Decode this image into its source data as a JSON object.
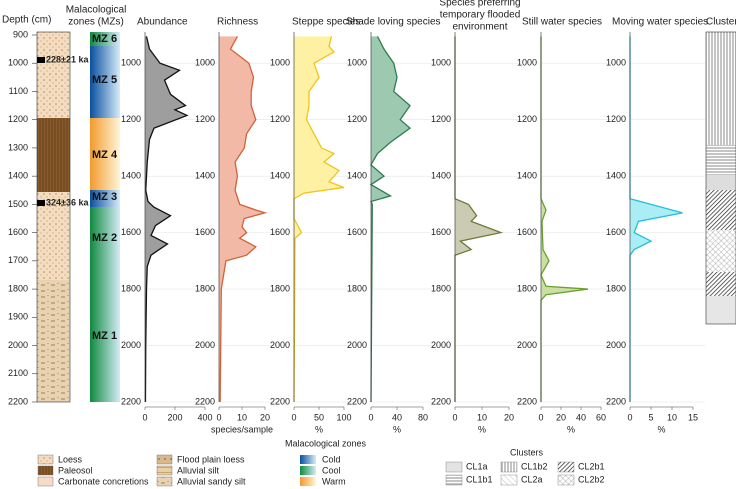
{
  "depth_axis": {
    "title": "Depth (cm)",
    "ticks": [
      900,
      1000,
      1100,
      1200,
      1300,
      1400,
      1500,
      1600,
      1700,
      1800,
      1900,
      2000,
      2100,
      2200
    ]
  },
  "dates": [
    "228±21 ka",
    "324±36 ka"
  ],
  "zones": {
    "title": [
      "Malacological",
      "zones (MZs)"
    ],
    "labels": [
      "MZ 6",
      "MZ 5",
      "MZ 4",
      "MZ 3",
      "MZ 2",
      "MZ 1"
    ]
  },
  "clusters_title": "Clusters",
  "chart_data": [
    {
      "type": "area",
      "title": "Abundance",
      "color": "#111111",
      "fill": "#9e9e9e",
      "ylim": [
        900,
        2200
      ],
      "yticks": [
        1000,
        1200,
        1400,
        1600,
        1800,
        2000,
        2200
      ],
      "xlim": [
        0,
        400
      ],
      "xticks": [
        0,
        200,
        400
      ],
      "depth": [
        905,
        950,
        1000,
        1025,
        1060,
        1110,
        1150,
        1165,
        1185,
        1230,
        1270,
        1350,
        1450,
        1490,
        1510,
        1540,
        1575,
        1610,
        1640,
        1680,
        1720,
        1800,
        2000,
        2200
      ],
      "values": [
        10,
        30,
        100,
        230,
        130,
        170,
        270,
        200,
        280,
        60,
        30,
        15,
        5,
        20,
        60,
        170,
        70,
        40,
        150,
        40,
        15,
        10,
        5,
        3
      ]
    },
    {
      "type": "area",
      "title": "Richness",
      "xlabel": "species/sample",
      "color": "#d4603a",
      "fill": "#f2b9a6",
      "ylim": [
        900,
        2200
      ],
      "yticks": [
        1000,
        1200,
        1400,
        1600,
        1800,
        2000,
        2200
      ],
      "xlim": [
        0,
        20
      ],
      "xticks": [
        0,
        10,
        20
      ],
      "depth": [
        905,
        950,
        1000,
        1050,
        1100,
        1150,
        1200,
        1250,
        1300,
        1350,
        1400,
        1450,
        1500,
        1520,
        1530,
        1550,
        1580,
        1600,
        1620,
        1650,
        1680,
        1700,
        1750,
        1800,
        2200
      ],
      "values": [
        8,
        5,
        13,
        15,
        14,
        14,
        16,
        12,
        11,
        7,
        8,
        7,
        9,
        16,
        20,
        11,
        10,
        12,
        9,
        16,
        12,
        3,
        2,
        1,
        0.5
      ]
    },
    {
      "type": "area",
      "title": "Steppe species",
      "xlabel": "%",
      "color": "#f0c419",
      "fill": "#fff1a3",
      "ylim": [
        900,
        2200
      ],
      "yticks": [
        1000,
        1200,
        1400,
        1600,
        1800,
        2000,
        2200
      ],
      "xlim": [
        0,
        100
      ],
      "xticks": [
        0,
        50,
        100
      ],
      "depth": [
        905,
        940,
        960,
        1000,
        1050,
        1100,
        1150,
        1200,
        1250,
        1300,
        1320,
        1350,
        1380,
        1420,
        1440,
        1460,
        1480,
        1550,
        1600,
        1620,
        2200
      ],
      "values": [
        75,
        70,
        80,
        40,
        50,
        30,
        30,
        25,
        40,
        55,
        80,
        60,
        90,
        70,
        100,
        20,
        0,
        0,
        15,
        2,
        0
      ]
    },
    {
      "type": "area",
      "title": "Shade loving species",
      "xlabel": "%",
      "color": "#2e7d4f",
      "fill": "#9dc9b1",
      "ylim": [
        900,
        2200
      ],
      "yticks": [
        1000,
        1200,
        1400,
        1600,
        1800,
        2000,
        2200
      ],
      "xlim": [
        0,
        80
      ],
      "xticks": [
        0,
        40,
        80
      ],
      "depth": [
        905,
        950,
        1000,
        1050,
        1100,
        1150,
        1200,
        1230,
        1280,
        1320,
        1360,
        1400,
        1430,
        1470,
        1490,
        1500,
        2200
      ],
      "values": [
        10,
        20,
        35,
        40,
        35,
        60,
        45,
        60,
        30,
        10,
        0,
        20,
        0,
        30,
        0,
        2,
        0
      ]
    },
    {
      "type": "area",
      "title": [
        "Species preferring",
        "temporary flooded",
        "environment"
      ],
      "xlabel": "%",
      "color": "#6b7b3a",
      "fill": "#cbcbb3",
      "ylim": [
        900,
        2200
      ],
      "yticks": [
        1000,
        1200,
        1400,
        1600,
        1800,
        2000,
        2200
      ],
      "xlim": [
        0,
        20
      ],
      "xticks": [
        0,
        10,
        20
      ],
      "depth": [
        905,
        1480,
        1500,
        1540,
        1560,
        1600,
        1630,
        1660,
        1680,
        2200
      ],
      "values": [
        0,
        0,
        5,
        8,
        6,
        17,
        2,
        6,
        0,
        0
      ]
    },
    {
      "type": "area",
      "title": "Still water species",
      "xlabel": "%",
      "color": "#6aa030",
      "fill": "#cadfa3",
      "ylim": [
        900,
        2200
      ],
      "yticks": [
        1000,
        1200,
        1400,
        1600,
        1800,
        2000,
        2200
      ],
      "xlim": [
        0,
        60
      ],
      "xticks": [
        0,
        20,
        40,
        60
      ],
      "depth": [
        905,
        1480,
        1520,
        1560,
        1660,
        1700,
        1750,
        1790,
        1800,
        1820,
        1840,
        2200
      ],
      "values": [
        0,
        0,
        5,
        1,
        2,
        8,
        0,
        5,
        47,
        5,
        0,
        0
      ]
    },
    {
      "type": "area",
      "title": "Moving water species",
      "xlabel": "%",
      "color": "#20c0d8",
      "fill": "#aaedf5",
      "ylim": [
        900,
        2200
      ],
      "yticks": [
        1000,
        1200,
        1400,
        1600,
        1800,
        2000,
        2200
      ],
      "xlim": [
        0,
        15
      ],
      "xticks": [
        0,
        5,
        10,
        15
      ],
      "depth": [
        905,
        1480,
        1500,
        1530,
        1560,
        1600,
        1630,
        1660,
        1680,
        2200
      ],
      "values": [
        0,
        0,
        5,
        12.5,
        2,
        1,
        5,
        1,
        0,
        0
      ]
    }
  ],
  "legend": {
    "lithology": [
      "Loess",
      "Paleosol",
      "Carbonate concretions",
      "Flood plain loess",
      "Alluvial silt",
      "Alluvial sandy silt"
    ],
    "zones_title": "Malacological zones",
    "zones": [
      "Cold",
      "Cool",
      "Warm"
    ],
    "clusters_title": "Clusters",
    "clusters": [
      "CL1a",
      "CL1b1",
      "CL1b2",
      "CL2a",
      "CL2b1",
      "CL2b2"
    ]
  }
}
